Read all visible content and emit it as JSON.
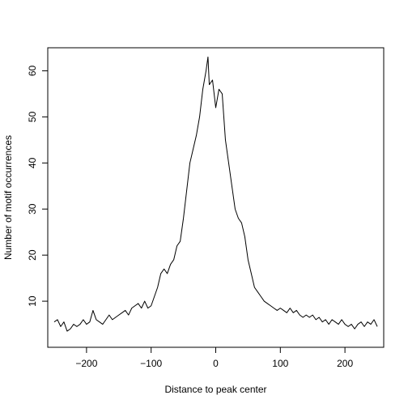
{
  "chart_data": {
    "type": "line",
    "title": "",
    "xlabel": "Distance to peak center",
    "ylabel": "Number of motif occurrences",
    "xlim": [
      -260,
      260
    ],
    "ylim": [
      0,
      65
    ],
    "xticks": [
      -200,
      -100,
      0,
      100,
      200
    ],
    "xtick_labels": [
      "−200",
      "−100",
      "0",
      "100",
      "200"
    ],
    "yticks": [
      10,
      20,
      30,
      40,
      50,
      60
    ],
    "ytick_labels": [
      "10",
      "20",
      "30",
      "40",
      "50",
      "60"
    ],
    "grid": false,
    "legend": "none",
    "line_color": "#000000",
    "series": [
      {
        "x": [
          -250,
          -245,
          -240,
          -235,
          -230,
          -225,
          -220,
          -215,
          -210,
          -205,
          -200,
          -195,
          -190,
          -185,
          -180,
          -175,
          -170,
          -165,
          -160,
          -155,
          -150,
          -145,
          -140,
          -135,
          -130,
          -125,
          -120,
          -115,
          -110,
          -105,
          -100,
          -95,
          -90,
          -85,
          -80,
          -75,
          -70,
          -65,
          -60,
          -55,
          -50,
          -45,
          -40,
          -35,
          -30,
          -25,
          -20,
          -15,
          -12,
          -10,
          -5,
          0,
          5,
          10,
          15,
          20,
          25,
          30,
          35,
          40,
          45,
          50,
          55,
          60,
          65,
          70,
          75,
          80,
          85,
          90,
          95,
          100,
          105,
          110,
          115,
          120,
          125,
          130,
          135,
          140,
          145,
          150,
          155,
          160,
          165,
          170,
          175,
          180,
          185,
          190,
          195,
          200,
          205,
          210,
          215,
          220,
          225,
          230,
          235,
          240,
          245,
          250
        ],
        "y": [
          5.5,
          6,
          4.5,
          5.5,
          3.5,
          4,
          5,
          4.5,
          5,
          6,
          5,
          5.5,
          8,
          6,
          5.5,
          5,
          6,
          7,
          6,
          6.5,
          7,
          7.5,
          8,
          7,
          8.5,
          9,
          9.5,
          8.5,
          10,
          8.5,
          9,
          11,
          13,
          16,
          17,
          16,
          18,
          19,
          22,
          23,
          28,
          34,
          40,
          43,
          46,
          50,
          56,
          60,
          63,
          57,
          58,
          52,
          56,
          55,
          45,
          40,
          35,
          30,
          28,
          27,
          24,
          19,
          16,
          13,
          12,
          11,
          10,
          9.5,
          9,
          8.5,
          8,
          8.5,
          8,
          7.5,
          8.5,
          7.5,
          8,
          7,
          6.5,
          7,
          6.5,
          7,
          6,
          6.5,
          5.5,
          6,
          5,
          6,
          5.5,
          5,
          6,
          5,
          4.5,
          5,
          4,
          5,
          5.5,
          4.5,
          5.5,
          5,
          6,
          4.5
        ]
      }
    ]
  }
}
